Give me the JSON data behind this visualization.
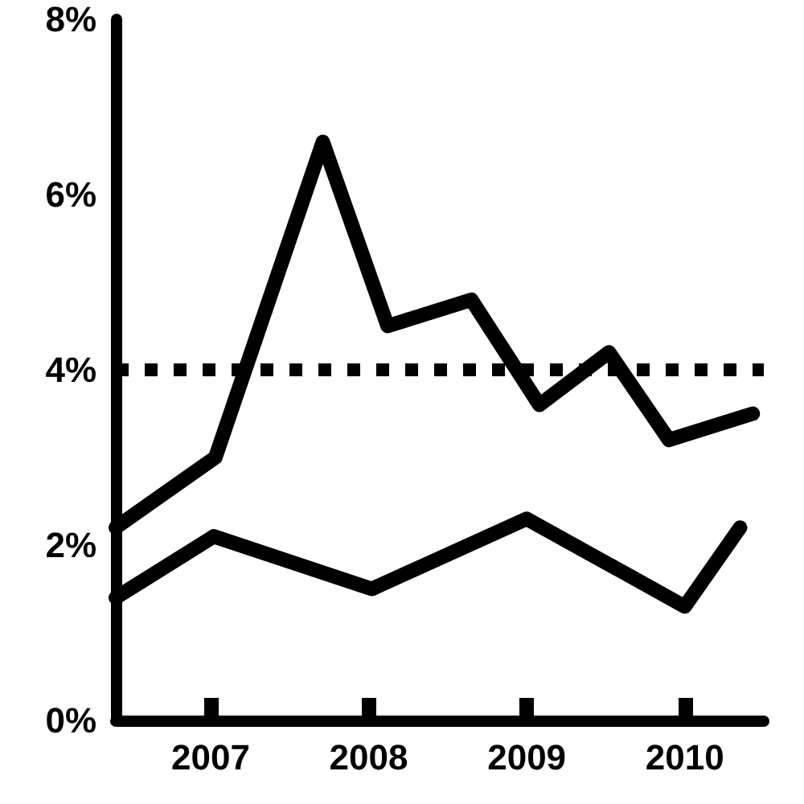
{
  "chart_data": {
    "type": "line",
    "xlim": [
      2006.4,
      2010.5
    ],
    "xticks": [
      2007,
      2008,
      2009,
      2010
    ],
    "ylim": [
      0,
      8
    ],
    "yticks": [
      {
        "value": 0,
        "label": "0%"
      },
      {
        "value": 2,
        "label": "2%"
      },
      {
        "value": 4,
        "label": "4%"
      },
      {
        "value": 6,
        "label": "6%"
      },
      {
        "value": 8,
        "label": "8%"
      }
    ],
    "grid": false,
    "line_style": "solid",
    "series": [
      {
        "color": "#000000",
        "x": [
          2006.4,
          2007.03,
          2007.71,
          2008.12,
          2008.65,
          2009.08,
          2009.52,
          2009.9,
          2010.43
        ],
        "values": [
          2.2,
          3.0,
          6.6,
          4.5,
          4.8,
          3.6,
          4.2,
          3.2,
          3.5
        ]
      },
      {
        "color": "#000000",
        "x": [
          2006.4,
          2007.02,
          2008.02,
          2009.0,
          2010.0,
          2010.35
        ],
        "values": [
          1.4,
          2.1,
          1.5,
          2.3,
          1.3,
          2.2
        ]
      }
    ],
    "ref_lines": [
      {
        "axis": "y",
        "value": 4,
        "color": "#000000",
        "line_style": "dotted"
      }
    ]
  }
}
